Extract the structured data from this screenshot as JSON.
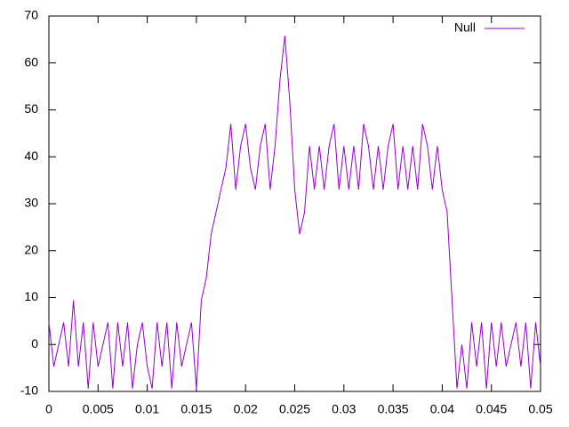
{
  "chart_data": {
    "type": "line",
    "x": [
      0,
      0.0005,
      0.001,
      0.0015,
      0.002,
      0.0025,
      0.003,
      0.0035,
      0.004,
      0.0045,
      0.005,
      0.0055,
      0.006,
      0.0065,
      0.007,
      0.0075,
      0.008,
      0.0085,
      0.009,
      0.0095,
      0.01,
      0.0105,
      0.011,
      0.0115,
      0.012,
      0.0125,
      0.013,
      0.0135,
      0.014,
      0.0145,
      0.015,
      0.0155,
      0.016,
      0.0165,
      0.017,
      0.0175,
      0.018,
      0.0185,
      0.019,
      0.0195,
      0.02,
      0.0205,
      0.021,
      0.0215,
      0.022,
      0.0225,
      0.023,
      0.0235,
      0.024,
      0.0245,
      0.025,
      0.0255,
      0.026,
      0.0265,
      0.027,
      0.0275,
      0.028,
      0.0285,
      0.029,
      0.0295,
      0.03,
      0.0305,
      0.031,
      0.0315,
      0.032,
      0.0325,
      0.033,
      0.0335,
      0.034,
      0.0345,
      0.035,
      0.0355,
      0.036,
      0.0365,
      0.037,
      0.0375,
      0.038,
      0.0385,
      0.039,
      0.0395,
      0.04,
      0.0405,
      0.041,
      0.0415,
      0.042,
      0.0425,
      0.043,
      0.0435,
      0.044,
      0.0445,
      0.045,
      0.0455,
      0.046,
      0.0465,
      0.047,
      0.0475,
      0.048,
      0.0485,
      0.049,
      0.0495,
      0.05
    ],
    "series": [
      {
        "name": "Null",
        "color": "#9400d3",
        "values": [
          4.7,
          -4.7,
          0,
          4.7,
          -4.7,
          9.4,
          -4.7,
          4.7,
          -9.4,
          4.7,
          -4.7,
          0,
          4.7,
          -9.4,
          4.7,
          -4.7,
          4.7,
          -9.4,
          0,
          4.7,
          -4.7,
          -9.4,
          4.7,
          -4.7,
          4.7,
          -9.4,
          4.7,
          -4.7,
          0,
          4.7,
          -9.4,
          9.4,
          14.1,
          23.5,
          28.2,
          33,
          37.6,
          47,
          33,
          42.3,
          47,
          37.6,
          33,
          42.3,
          47,
          33,
          42.3,
          56.4,
          65.8,
          51.7,
          33,
          23.5,
          28.2,
          42.3,
          33,
          42.3,
          33,
          42.3,
          47,
          33,
          42.3,
          33,
          42.3,
          33,
          47,
          42.3,
          33,
          42.3,
          33,
          42.3,
          47,
          33,
          42.3,
          33,
          42.3,
          33,
          47,
          42.3,
          33,
          42.3,
          33,
          28.2,
          9.4,
          -9.4,
          0,
          -9.4,
          4.7,
          -4.7,
          4.7,
          -9.4,
          4.7,
          -4.7,
          4.7,
          -4.7,
          0,
          4.7,
          -4.7,
          4.7,
          -9.4,
          4.7,
          -4.7
        ]
      }
    ],
    "xlim": [
      0,
      0.05
    ],
    "xticks": [
      0,
      0.005,
      0.01,
      0.015,
      0.02,
      0.025,
      0.03,
      0.035,
      0.04,
      0.045,
      0.05
    ],
    "ylim": [
      -10,
      70
    ],
    "yticks": [
      -10,
      0,
      10,
      20,
      30,
      40,
      50,
      60,
      70
    ],
    "legend": "top-right"
  }
}
